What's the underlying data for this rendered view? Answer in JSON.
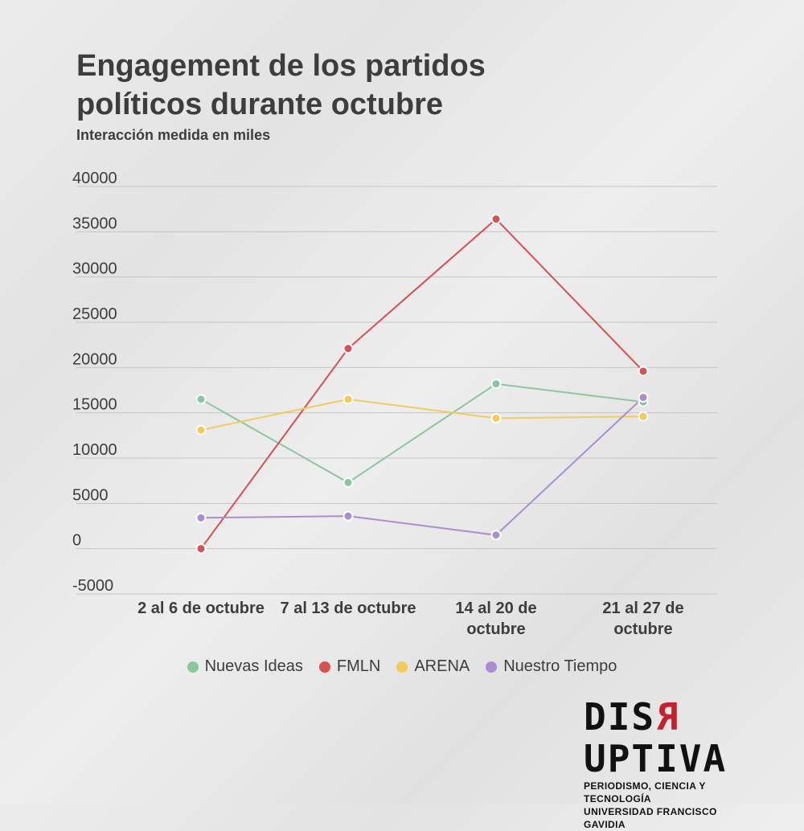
{
  "header": {
    "title": "Engagement de los partidos políticos durante octubre",
    "subtitle": "Interacción medida en miles"
  },
  "brand": {
    "logo_prefix": "DIS",
    "logo_reversed_letter": "R",
    "logo_suffix": "UPTIVA",
    "tagline": "PERIODISMO, CIENCIA Y TECNOLOGÍA",
    "institution": "UNIVERSIDAD FRANCISCO GAVIDIA",
    "accent_color": "#c81f2b"
  },
  "chart_data": {
    "type": "line",
    "title": "Engagement de los partidos políticos durante octubre",
    "subtitle": "Interacción medida en miles",
    "categories": [
      "2 al 6 de octubre",
      "7 al 13 de octubre",
      "14 al 20 de octubre",
      "21 al 27 de octubre"
    ],
    "category_lines": [
      [
        "2 al 6 de octubre"
      ],
      [
        "7 al 13 de octubre"
      ],
      [
        "14 al 20 de",
        "octubre"
      ],
      [
        "21 al 27 de",
        "octubre"
      ]
    ],
    "ylim": [
      -5000,
      40000
    ],
    "yticks": [
      40000,
      35000,
      30000,
      25000,
      20000,
      15000,
      10000,
      5000,
      0,
      -5000
    ],
    "grid": true,
    "legend_position": "bottom",
    "series": [
      {
        "name": "Nuevas Ideas",
        "color": "#8cc6a1",
        "values": [
          16500,
          7300,
          18200,
          16200
        ]
      },
      {
        "name": "FMLN",
        "color": "#d94f52",
        "values": [
          0,
          22100,
          36400,
          19600
        ]
      },
      {
        "name": "ARENA",
        "color": "#f2cc5a",
        "values": [
          13100,
          16500,
          14400,
          14600
        ]
      },
      {
        "name": "Nuestro Tiempo",
        "color": "#a98fcf",
        "values": [
          3400,
          3600,
          1500,
          16700
        ]
      }
    ]
  }
}
